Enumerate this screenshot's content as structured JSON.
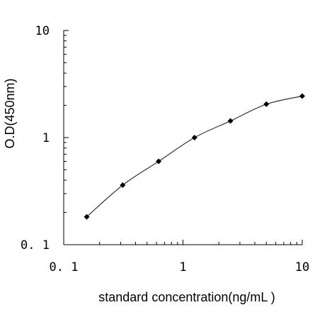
{
  "chart_data": {
    "type": "line",
    "xlabel": "standard concentration(ng/mL  )",
    "ylabel": "O.D(450nm)",
    "x_scale": "log",
    "y_scale": "log",
    "xlim": [
      0.1,
      10
    ],
    "ylim": [
      0.1,
      10
    ],
    "x_ticks": [
      {
        "value": 0.1,
        "label": "0. 1"
      },
      {
        "value": 1,
        "label": "1"
      },
      {
        "value": 10,
        "label": "10"
      }
    ],
    "y_ticks": [
      {
        "value": 10,
        "label": "10"
      },
      {
        "value": 1,
        "label": "1"
      },
      {
        "value": 0.1,
        "label": "0. 1"
      }
    ],
    "grid": false,
    "marker": "diamond",
    "series": [
      {
        "x": [
          0.156,
          0.3125,
          0.625,
          1.25,
          2.5,
          5,
          10
        ],
        "y": [
          0.182,
          0.36,
          0.6,
          1.0,
          1.43,
          2.05,
          2.44
        ]
      }
    ]
  }
}
